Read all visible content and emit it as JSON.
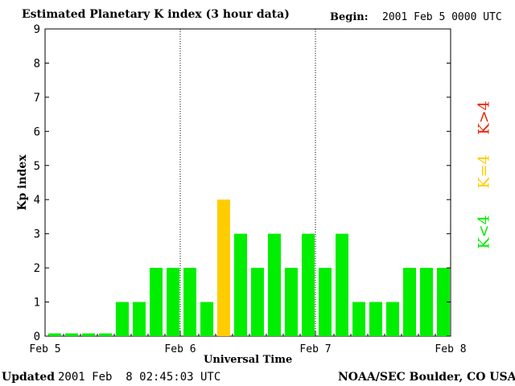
{
  "header": {
    "title": "Estimated Planetary K index (3 hour data)",
    "begin_label": "Begin:",
    "begin_value": "2001 Feb 5 0000 UTC"
  },
  "footer": {
    "updated_label": "Updated",
    "updated_value": "2001 Feb  8 02:45:03 UTC",
    "source": "NOAA/SEC Boulder, CO USA"
  },
  "legend": {
    "items": [
      {
        "label": "K<4",
        "color": "#00ee00"
      },
      {
        "label": "K=4",
        "color": "#ffcc00"
      },
      {
        "label": "K>4",
        "color": "#ee2200"
      }
    ]
  },
  "colors": {
    "below4": "#00ee00",
    "equal4": "#ffcc00",
    "above4": "#ee2200"
  },
  "chart_data": {
    "type": "bar",
    "title": "Estimated Planetary K index (3 hour data)",
    "xlabel": "Universal Time",
    "ylabel": "Kp index",
    "ylim": [
      0,
      9
    ],
    "yticks": [
      0,
      1,
      2,
      3,
      4,
      5,
      6,
      7,
      8,
      9
    ],
    "xticks": [
      "Feb 5",
      "Feb 6",
      "Feb 7",
      "Feb 8"
    ],
    "day_dividers": [
      "Feb 6",
      "Feb 7"
    ],
    "bars_per_day": 8,
    "values": [
      0,
      0,
      0,
      0,
      1,
      1,
      2,
      2,
      2,
      1,
      4,
      3,
      2,
      3,
      2,
      3,
      2,
      3,
      1,
      1,
      1,
      2,
      2,
      2
    ],
    "grid": false
  }
}
